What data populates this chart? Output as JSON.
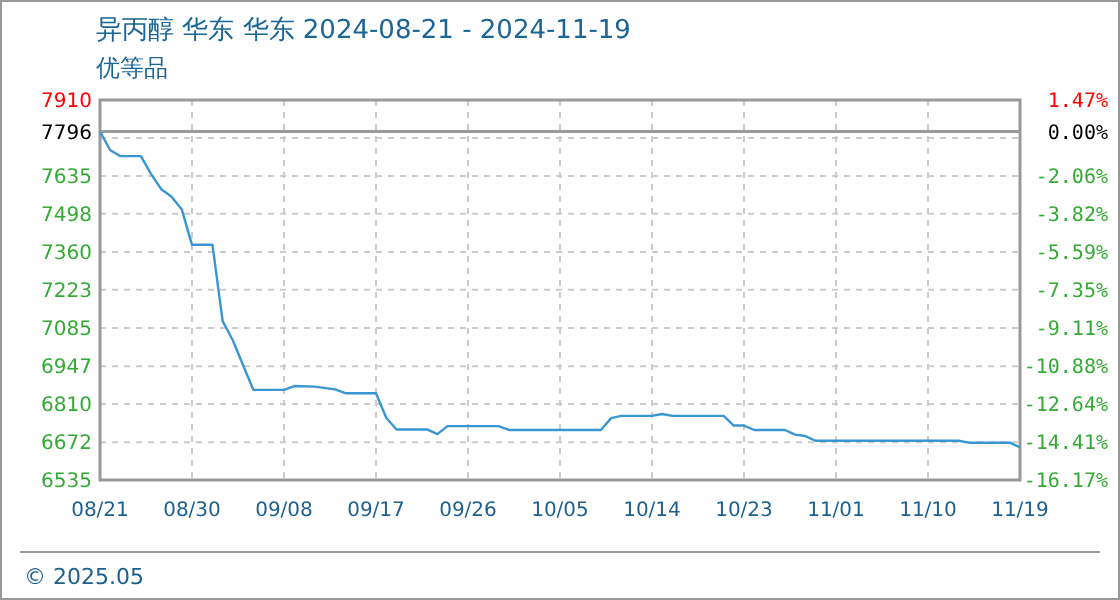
{
  "chart_data": {
    "type": "line",
    "title": "异丙醇 华东 华东 2024-08-21 - 2024-11-19",
    "subtitle": "优等品",
    "annotations": [
      "© 2025.05"
    ],
    "x": [
      "2024-08-21",
      "2024-08-22",
      "2024-08-23",
      "2024-08-25",
      "2024-08-26",
      "2024-08-27",
      "2024-08-28",
      "2024-08-29",
      "2024-08-30",
      "2024-09-01",
      "2024-09-02",
      "2024-09-03",
      "2024-09-04",
      "2024-09-05",
      "2024-09-08",
      "2024-09-09",
      "2024-09-11",
      "2024-09-13",
      "2024-09-14",
      "2024-09-17",
      "2024-09-18",
      "2024-09-19",
      "2024-09-22",
      "2024-09-23",
      "2024-09-24",
      "2024-09-29",
      "2024-09-30",
      "2024-10-09",
      "2024-10-10",
      "2024-10-11",
      "2024-10-14",
      "2024-10-15",
      "2024-10-16",
      "2024-10-21",
      "2024-10-22",
      "2024-10-23",
      "2024-10-24",
      "2024-10-27",
      "2024-10-28",
      "2024-10-29",
      "2024-10-30",
      "2024-11-13",
      "2024-11-14",
      "2024-11-18",
      "2024-11-19"
    ],
    "series": [
      {
        "color": "#3a96d2",
        "values": [
          7796,
          7728,
          7707,
          7707,
          7642,
          7587,
          7560,
          7514,
          7386,
          7386,
          7110,
          7040,
          6950,
          6861,
          6861,
          6875,
          6873,
          6863,
          6849,
          6849,
          6760,
          6718,
          6718,
          6701,
          6730,
          6730,
          6716,
          6716,
          6759,
          6767,
          6767,
          6774,
          6767,
          6767,
          6732,
          6732,
          6716,
          6716,
          6699,
          6694,
          6677,
          6677,
          6670,
          6670,
          6653
        ]
      }
    ],
    "xlim": [
      "2024-08-21",
      "2024-11-19"
    ],
    "xticks": [
      {
        "value": "2024-08-21",
        "label": "08/21"
      },
      {
        "value": "2024-08-30",
        "label": "08/30"
      },
      {
        "value": "2024-09-08",
        "label": "09/08"
      },
      {
        "value": "2024-09-17",
        "label": "09/17"
      },
      {
        "value": "2024-09-26",
        "label": "09/26"
      },
      {
        "value": "2024-10-05",
        "label": "10/05"
      },
      {
        "value": "2024-10-14",
        "label": "10/14"
      },
      {
        "value": "2024-10-23",
        "label": "10/23"
      },
      {
        "value": "2024-11-01",
        "label": "11/01"
      },
      {
        "value": "2024-11-10",
        "label": "11/10"
      },
      {
        "value": "2024-11-19",
        "label": "11/19"
      }
    ],
    "ylim": [
      6535,
      7910
    ],
    "yticks": [
      7910,
      {
        "value": 7772.5,
        "label": null
      },
      7796,
      7635,
      7498,
      7360,
      7223,
      7085,
      6947,
      6810,
      6672,
      6535
    ],
    "y2lim": [
      -16.17,
      1.47
    ],
    "y2ticks": [
      {
        "value": 1.47,
        "label": "1.47%"
      },
      {
        "value": 0,
        "label": "0.00%"
      },
      {
        "value": -2.06,
        "label": "-2.06%"
      },
      {
        "value": -3.82,
        "label": "-3.82%"
      },
      {
        "value": -5.59,
        "label": "-5.59%"
      },
      {
        "value": -7.35,
        "label": "-7.35%"
      },
      {
        "value": -9.11,
        "label": "-9.11%"
      },
      {
        "value": -10.88,
        "label": "-10.88%"
      },
      {
        "value": -12.64,
        "label": "-12.64%"
      },
      {
        "value": -14.41,
        "label": "-14.41%"
      },
      {
        "value": -16.17,
        "label": "-16.17%"
      }
    ],
    "ref_lines": [
      {
        "axis": "y",
        "value": 7796,
        "color": "#999999"
      }
    ],
    "grid": true,
    "line_style": "solid",
    "marker": "none"
  }
}
